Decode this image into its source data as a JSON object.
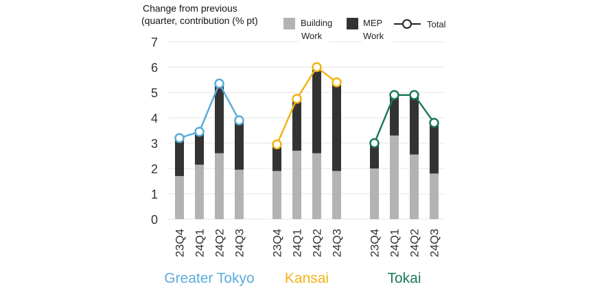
{
  "chart_data": {
    "type": "bar",
    "subtype": "stacked-bar-with-line",
    "title": "",
    "ylabel": "Change from previous quarter, contribution (% pt)",
    "ylabel_lines": [
      "Change from previous",
      "(quarter, contribution (% pt)"
    ],
    "ylim": [
      0,
      7
    ],
    "yticks": [
      0,
      1,
      2,
      3,
      4,
      5,
      6,
      7
    ],
    "grid": true,
    "legend": {
      "placement": "top",
      "entries": [
        {
          "key": "building",
          "lines": [
            "Building",
            "Work"
          ]
        },
        {
          "key": "mep",
          "lines": [
            "MEP",
            "Work"
          ]
        },
        {
          "key": "total",
          "lines": [
            "Total"
          ]
        }
      ]
    },
    "colors": {
      "building": "#b3b3b3",
      "mep": "#333333",
      "grid": "#e4e4e4",
      "axis_text": "#333333"
    },
    "groups": [
      {
        "name": "Greater Tokyo",
        "color": "#5bacdb",
        "categories": [
          "23Q4",
          "24Q1",
          "24Q2",
          "24Q3"
        ],
        "building": [
          1.7,
          2.15,
          2.6,
          1.95
        ],
        "mep": [
          1.5,
          1.3,
          2.75,
          1.95
        ],
        "total": [
          3.2,
          3.45,
          5.35,
          3.9
        ]
      },
      {
        "name": "Kansai",
        "color": "#f1b416",
        "categories": [
          "23Q4",
          "24Q1",
          "24Q2",
          "24Q3"
        ],
        "building": [
          1.9,
          2.7,
          2.6,
          1.9
        ],
        "mep": [
          1.05,
          2.05,
          3.4,
          3.5
        ],
        "total": [
          2.95,
          4.75,
          6.0,
          5.4
        ]
      },
      {
        "name": "Tokai",
        "color": "#1b7a55",
        "categories": [
          "23Q4",
          "24Q1",
          "24Q2",
          "24Q3"
        ],
        "building": [
          2.0,
          3.3,
          2.55,
          1.8
        ],
        "mep": [
          1.0,
          1.6,
          2.35,
          2.0
        ],
        "total": [
          3.0,
          4.9,
          4.9,
          3.8
        ]
      }
    ]
  }
}
